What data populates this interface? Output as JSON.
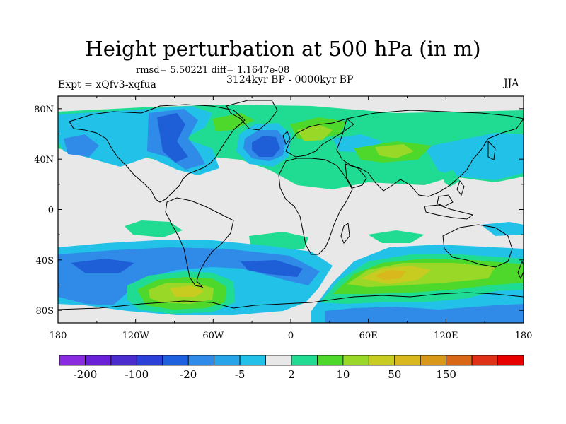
{
  "title": "Height perturbation at 500 hPa (in m)",
  "stats": "rmsd= 5.50221 diff= 1.1647e-08",
  "period": "3124kyr BP - 0000kyr BP",
  "experiment": "Expt = xQfv3-xqfua",
  "season": "JJA",
  "map": {
    "lon_range": [
      -180,
      180
    ],
    "lat_range": [
      -90,
      90
    ],
    "lon_ticks": [
      {
        "value": -180,
        "label": "180"
      },
      {
        "value": -120,
        "label": "120W"
      },
      {
        "value": -60,
        "label": "60W"
      },
      {
        "value": 0,
        "label": "0"
      },
      {
        "value": 60,
        "label": "60E"
      },
      {
        "value": 120,
        "label": "120E"
      },
      {
        "value": 180,
        "label": "180"
      }
    ],
    "lat_ticks": [
      {
        "value": 80,
        "label": "80N"
      },
      {
        "value": 40,
        "label": "40N"
      },
      {
        "value": 0,
        "label": "0"
      },
      {
        "value": -40,
        "label": "40S"
      },
      {
        "value": -80,
        "label": "80S"
      }
    ],
    "background_color": "#e8e8e8",
    "coast_color": "#000000"
  },
  "colorbar": {
    "colors": [
      "#8a2be2",
      "#6a1fd8",
      "#4a2ccf",
      "#2a40d8",
      "#1f60e0",
      "#2f8ae8",
      "#26a6e8",
      "#22c2e8",
      "#e8e8e8",
      "#20dc92",
      "#4ed82c",
      "#9ad828",
      "#c8cc20",
      "#d8b81c",
      "#d89818",
      "#d86818",
      "#e03018",
      "#e80000"
    ],
    "labels": [
      {
        "boundary": 1,
        "text": "-200"
      },
      {
        "boundary": 3,
        "text": "-100"
      },
      {
        "boundary": 5,
        "text": "-20"
      },
      {
        "boundary": 7,
        "text": "-5"
      },
      {
        "boundary": 9,
        "text": "2"
      },
      {
        "boundary": 11,
        "text": "10"
      },
      {
        "boundary": 13,
        "text": "50"
      },
      {
        "boundary": 15,
        "text": "150"
      }
    ]
  },
  "colors": {
    "dark_blue": "#1e5fd8",
    "blue": "#2f8ae8",
    "light_blue": "#22c2e8",
    "cyan_green": "#20dc92",
    "green": "#4ed82c",
    "yellow_green": "#9ad828",
    "yellow": "#c8cc20",
    "ochre": "#d8b81c"
  }
}
